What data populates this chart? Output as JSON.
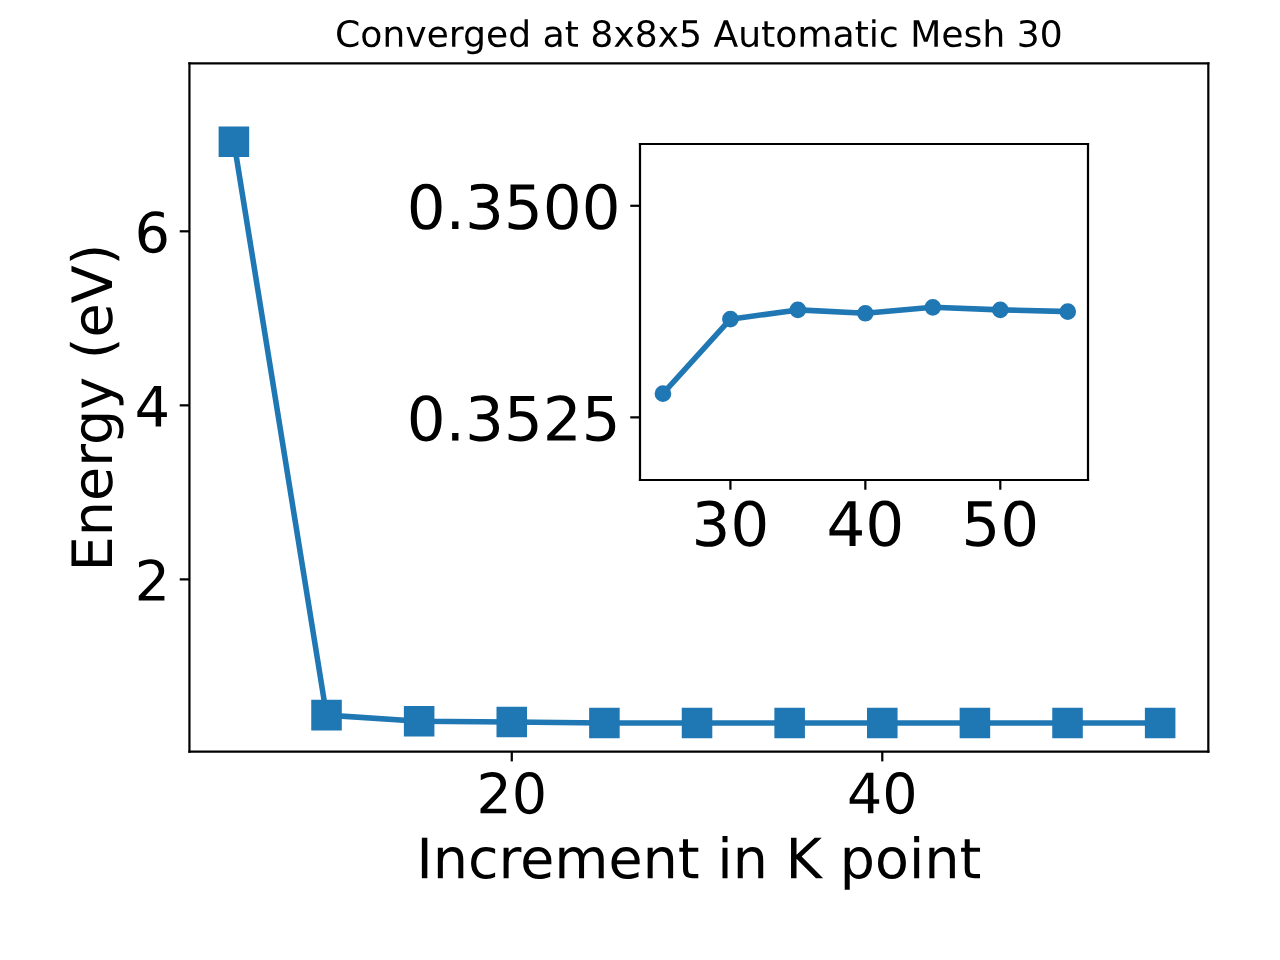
{
  "chart_data": [
    {
      "type": "line",
      "title": "Converged at 8x8x5 Automatic Mesh 30",
      "xlabel": "Increment in K point",
      "ylabel": "Energy (eV)",
      "x": [
        5,
        10,
        15,
        20,
        25,
        30,
        35,
        40,
        45,
        50,
        55
      ],
      "series": [
        {
          "color": "#1f77b4",
          "values": [
            7.03,
            0.44,
            0.37,
            0.36,
            0.35,
            0.35,
            0.35,
            0.35,
            0.35,
            0.35,
            0.35
          ]
        }
      ],
      "marker": "square",
      "xlim": [
        2.6,
        57.6
      ],
      "ylim": [
        0.02,
        7.93
      ],
      "xticks": [
        20,
        40
      ],
      "yticks": [
        2,
        4,
        6
      ],
      "grid": false,
      "legend": false
    },
    {
      "type": "line",
      "x": [
        25,
        30,
        35,
        40,
        45,
        50,
        55
      ],
      "series": [
        {
          "color": "#1f77b4",
          "values": [
            0.35222,
            0.35134,
            0.35123,
            0.35127,
            0.3512,
            0.35123,
            0.35125
          ]
        }
      ],
      "marker": "circle",
      "xlim": [
        23.3,
        56.5
      ],
      "ylim": [
        0.35324,
        0.34927
      ],
      "xticks": [
        30,
        40,
        50
      ],
      "yticks": [
        {
          "value": 0.35,
          "label": "0.3500"
        },
        {
          "value": 0.3525,
          "label": "0.3525"
        }
      ],
      "grid": false,
      "legend": false
    }
  ]
}
